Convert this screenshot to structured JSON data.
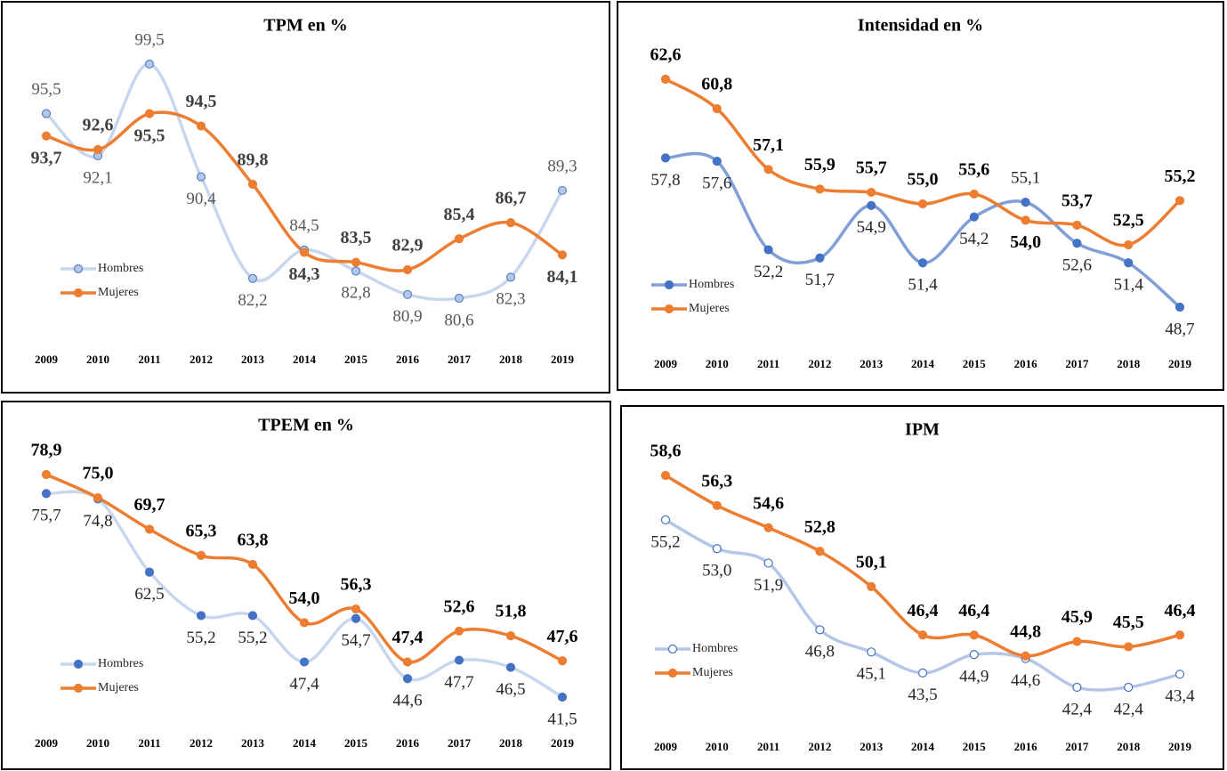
{
  "chart_data": [
    {
      "type": "line",
      "title": "TPM en %",
      "categories": [
        "2009",
        "2010",
        "2011",
        "2012",
        "2013",
        "2014",
        "2015",
        "2016",
        "2017",
        "2018",
        "2019"
      ],
      "legend": "left",
      "series": [
        {
          "name": "Hombres",
          "color": "#c9d7ee",
          "marker_color": "#b4c7e7",
          "marker_edge": "#5b83c7",
          "values": [
            95.5,
            92.1,
            99.5,
            90.4,
            82.2,
            84.5,
            82.8,
            80.9,
            80.6,
            82.3,
            89.3
          ],
          "value_labels": [
            "95,5",
            "92,1",
            "99,5",
            "90,4",
            "82,2",
            "84,5",
            "82,8",
            "80,9",
            "80,6",
            "82,3",
            "89,3"
          ]
        },
        {
          "name": "Mujeres",
          "color": "#ed7d31",
          "marker_color": "#ed7d31",
          "marker_edge": "#ed7d31",
          "values": [
            93.7,
            92.6,
            95.5,
            94.5,
            89.8,
            84.3,
            83.5,
            82.9,
            85.4,
            86.7,
            84.1
          ],
          "value_labels": [
            "93,7",
            "92,6",
            "95,5",
            "94,5",
            "89,8",
            "84,3",
            "83,5",
            "82,9",
            "85,4",
            "86,7",
            "84,1"
          ]
        }
      ]
    },
    {
      "type": "line",
      "title": "Intensidad en %",
      "categories": [
        "2009",
        "2010",
        "2011",
        "2012",
        "2013",
        "2014",
        "2015",
        "2016",
        "2017",
        "2018",
        "2019"
      ],
      "legend": "left",
      "series": [
        {
          "name": "Hombres",
          "color": "#7f9fd6",
          "marker_color": "#4472c4",
          "marker_edge": "#4472c4",
          "values": [
            57.8,
            57.6,
            52.2,
            51.7,
            54.9,
            51.4,
            54.2,
            55.1,
            52.6,
            51.4,
            48.7
          ],
          "value_labels": [
            "57,8",
            "57,6",
            "52,2",
            "51,7",
            "54,9",
            "51,4",
            "54,2",
            "55,1",
            "52,6",
            "51,4",
            "48,7"
          ]
        },
        {
          "name": "Mujeres",
          "color": "#ed7d31",
          "marker_color": "#ed7d31",
          "marker_edge": "#ed7d31",
          "values": [
            62.6,
            60.8,
            57.1,
            55.9,
            55.7,
            55.0,
            55.6,
            54.0,
            53.7,
            52.5,
            55.2
          ],
          "value_labels": [
            "62,6",
            "60,8",
            "57,1",
            "55,9",
            "55,7",
            "55,0",
            "55,6",
            "54,0",
            "53,7",
            "52,5",
            "55,2"
          ]
        }
      ]
    },
    {
      "type": "line",
      "title": "TPEM en %",
      "categories": [
        "2009",
        "2010",
        "2011",
        "2012",
        "2013",
        "2014",
        "2015",
        "2016",
        "2017",
        "2018",
        "2019"
      ],
      "legend": "left",
      "series": [
        {
          "name": "Hombres",
          "color": "#c9d7ee",
          "marker_color": "#4472c4",
          "marker_edge": "#4472c4",
          "values": [
            75.7,
            74.8,
            62.5,
            55.2,
            55.2,
            47.4,
            54.7,
            44.6,
            47.7,
            46.5,
            41.5
          ],
          "value_labels": [
            "75,7",
            "74,8",
            "62,5",
            "55,2",
            "55,2",
            "47,4",
            "54,7",
            "44,6",
            "47,7",
            "46,5",
            "41,5"
          ]
        },
        {
          "name": "Mujeres",
          "color": "#ed7d31",
          "marker_color": "#ed7d31",
          "marker_edge": "#ed7d31",
          "values": [
            78.9,
            75.0,
            69.7,
            65.3,
            63.8,
            54.0,
            56.3,
            47.4,
            52.6,
            51.8,
            47.6
          ],
          "value_labels": [
            "78,9",
            "75,0",
            "69,7",
            "65,3",
            "63,8",
            "54,0",
            "56,3",
            "47,4",
            "52,6",
            "51,8",
            "47,6"
          ]
        }
      ]
    },
    {
      "type": "line",
      "title": "IPM",
      "categories": [
        "2009",
        "2010",
        "2011",
        "2012",
        "2013",
        "2014",
        "2015",
        "2016",
        "2017",
        "2018",
        "2019"
      ],
      "legend": "left",
      "series": [
        {
          "name": "Hombres",
          "color": "#b4c7e7",
          "marker_color": "#ffffff",
          "marker_edge": "#4472c4",
          "values": [
            55.2,
            53.0,
            51.9,
            46.8,
            45.1,
            43.5,
            44.9,
            44.6,
            42.4,
            42.4,
            43.4
          ],
          "value_labels": [
            "55,2",
            "53,0",
            "51,9",
            "46,8",
            "45,1",
            "43,5",
            "44,9",
            "44,6",
            "42,4",
            "42,4",
            "43,4"
          ]
        },
        {
          "name": "Mujeres",
          "color": "#ed7d31",
          "marker_color": "#ed7d31",
          "marker_edge": "#ed7d31",
          "values": [
            58.6,
            56.3,
            54.6,
            52.8,
            50.1,
            46.4,
            46.4,
            44.8,
            45.9,
            45.5,
            46.4
          ],
          "value_labels": [
            "58,6",
            "56,3",
            "54,6",
            "52,8",
            "50,1",
            "46,4",
            "46,4",
            "44,8",
            "45,9",
            "45,5",
            "46,4"
          ]
        }
      ]
    }
  ]
}
